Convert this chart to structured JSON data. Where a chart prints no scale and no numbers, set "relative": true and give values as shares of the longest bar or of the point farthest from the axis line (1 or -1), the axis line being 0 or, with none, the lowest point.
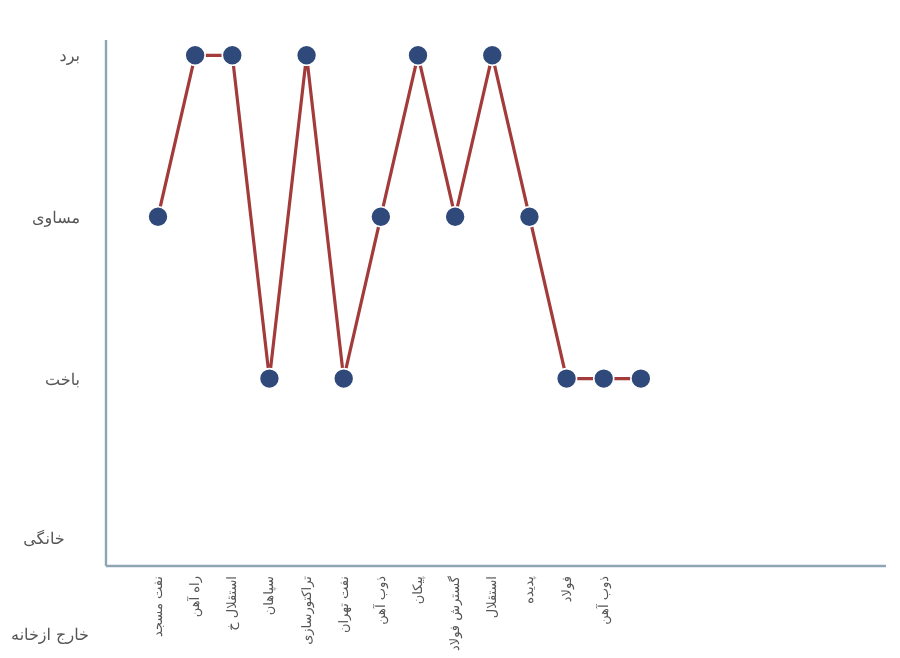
{
  "chart_data": {
    "type": "line",
    "relative": true,
    "categories": [
      "نفت مسجد",
      "راه آهن",
      "استقلال خ",
      "سپاهان",
      "تراکتورسازی",
      "نفت تهران",
      "ذوب آهن",
      "پیکان",
      "گسترش فولاد",
      "استقلال",
      "پدیده",
      "فولاد",
      "ذوب آهن",
      null
    ],
    "series": [
      {
        "color": "#a33b3b",
        "values": [
          0.684,
          1,
          1,
          0.367,
          1,
          0.367,
          0.684,
          1,
          0.684,
          1,
          0.684,
          0.367,
          0.367,
          0.367
        ]
      }
    ],
    "marker": "circle",
    "line_style": "solid",
    "annotations": [
      "برد",
      "مساوی",
      "باخت",
      "خانگی",
      "خارج ازخانه"
    ]
  }
}
